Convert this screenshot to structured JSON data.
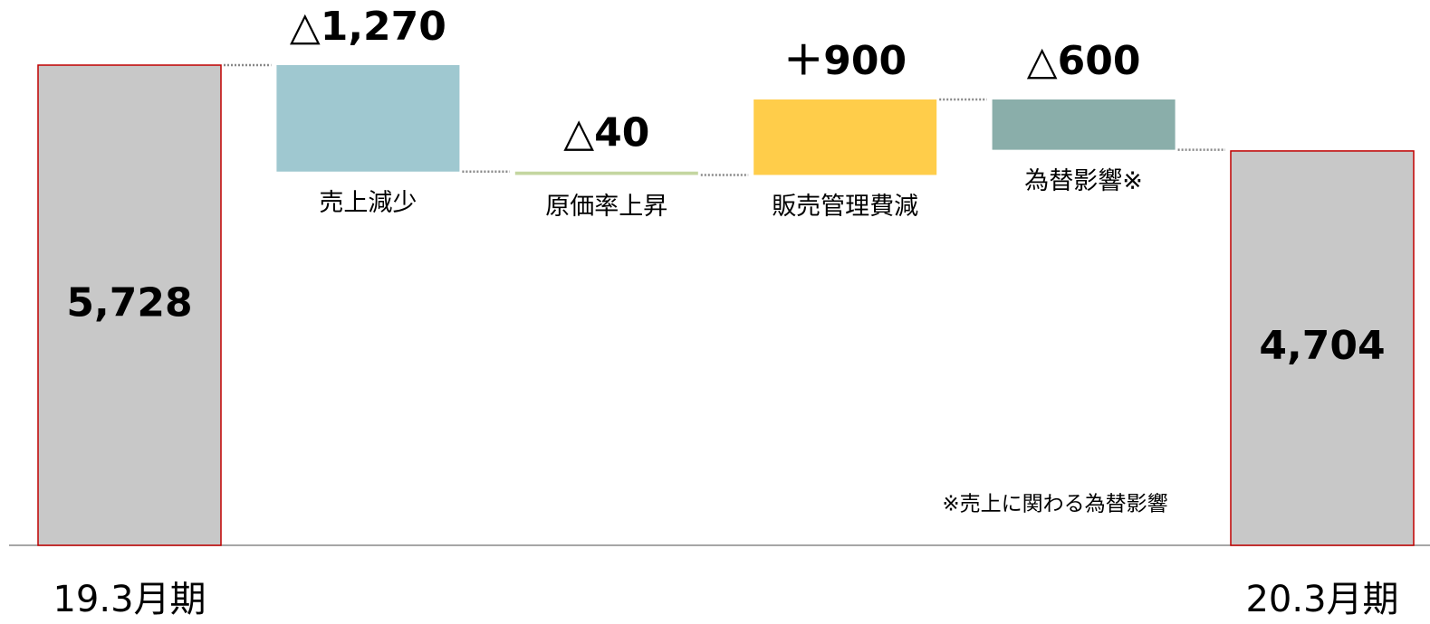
{
  "chart_data": {
    "type": "waterfall",
    "categories": [
      "19.3月期",
      "売上減少",
      "原価率上昇",
      "販売管理費減",
      "為替影響※",
      "20.3月期"
    ],
    "values": [
      5728,
      -1270,
      -40,
      900,
      -600,
      4704
    ],
    "value_labels": [
      "5,728",
      "△1,270",
      "△40",
      "＋900",
      "△600",
      "4,704"
    ],
    "totals": [
      true,
      false,
      false,
      false,
      false,
      true
    ],
    "colors": [
      "#c8c8c8",
      "#9fc8d0",
      "#c4d6a0",
      "#ffcd4a",
      "#8aaeaa",
      "#c8c8c8"
    ],
    "total_edge_color": "#c00000",
    "annotation": "※売上に関わる為替影響"
  }
}
